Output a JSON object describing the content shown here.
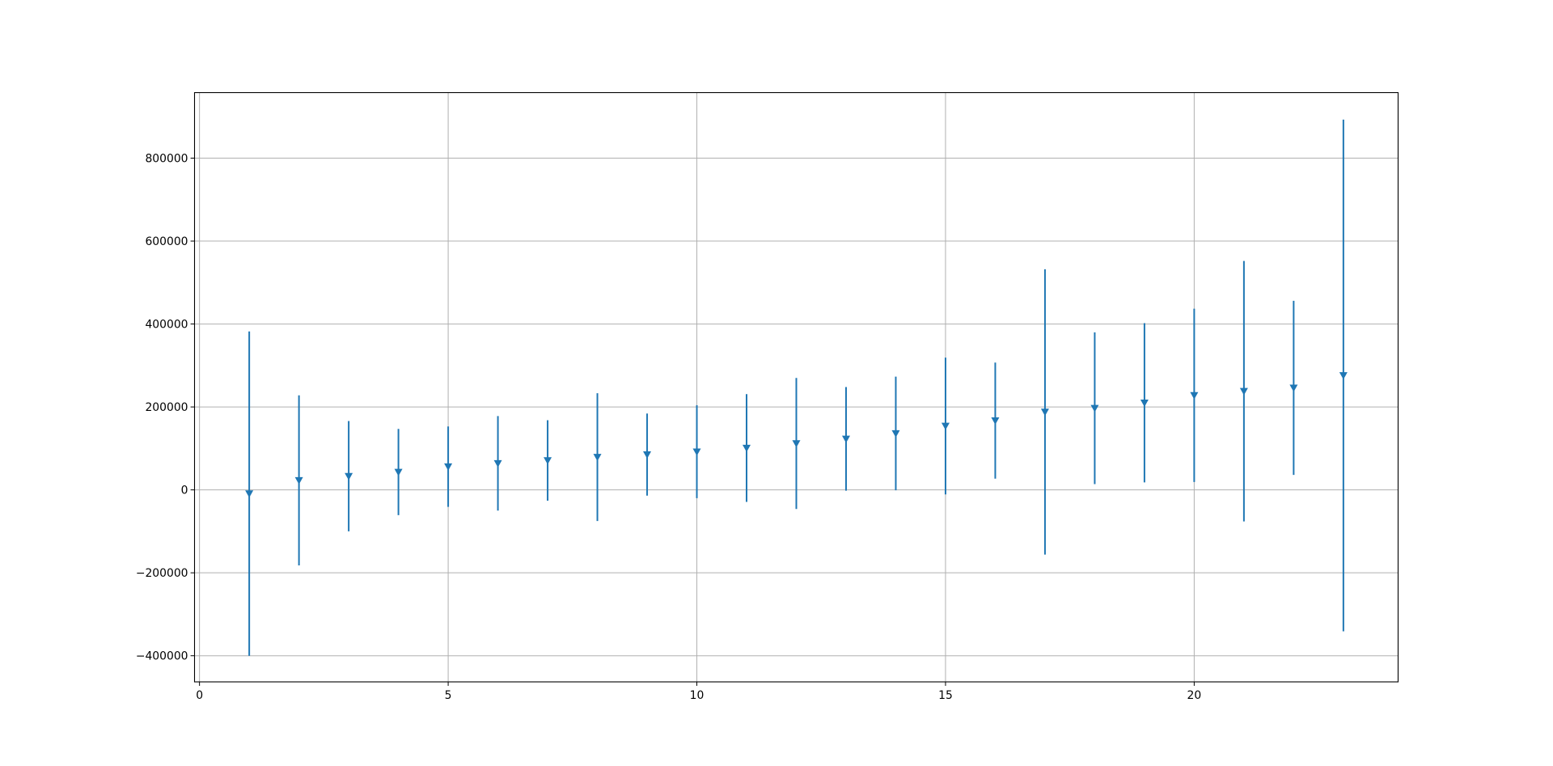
{
  "chart_data": {
    "type": "scatter",
    "subtype": "errorbar",
    "title": "",
    "xlabel": "",
    "ylabel": "",
    "marker": "triangle-down",
    "color": "#1f77b4",
    "grid": true,
    "xlim": [
      -0.1,
      24.1
    ],
    "ylim": [
      -463000,
      958000
    ],
    "x_ticks": [
      0,
      5,
      10,
      15,
      20
    ],
    "x_tick_labels": [
      "0",
      "5",
      "10",
      "15",
      "20"
    ],
    "y_ticks": [
      -400000,
      -200000,
      0,
      200000,
      400000,
      600000,
      800000
    ],
    "y_tick_labels": [
      "−400000",
      "−200000",
      "0",
      "200000",
      "400000",
      "600000",
      "800000"
    ],
    "series": [
      {
        "x": [
          1,
          2,
          3,
          4,
          5,
          6,
          7,
          8,
          9,
          10,
          11,
          12,
          13,
          14,
          15,
          16,
          17,
          18,
          19,
          20,
          21,
          22,
          23
        ],
        "y": [
          -9000,
          23000,
          33000,
          43000,
          56000,
          64000,
          71000,
          79000,
          85000,
          92000,
          101000,
          112000,
          123000,
          136000,
          154000,
          167000,
          188000,
          197000,
          210000,
          228000,
          238000,
          246000,
          276000
        ],
        "yerr": [
          391000,
          205000,
          133000,
          104000,
          97000,
          114000,
          97000,
          154000,
          99000,
          112000,
          130000,
          158000,
          125000,
          137000,
          165000,
          140000,
          344000,
          183000,
          192000,
          209000,
          314000,
          210000,
          617000
        ]
      }
    ]
  }
}
